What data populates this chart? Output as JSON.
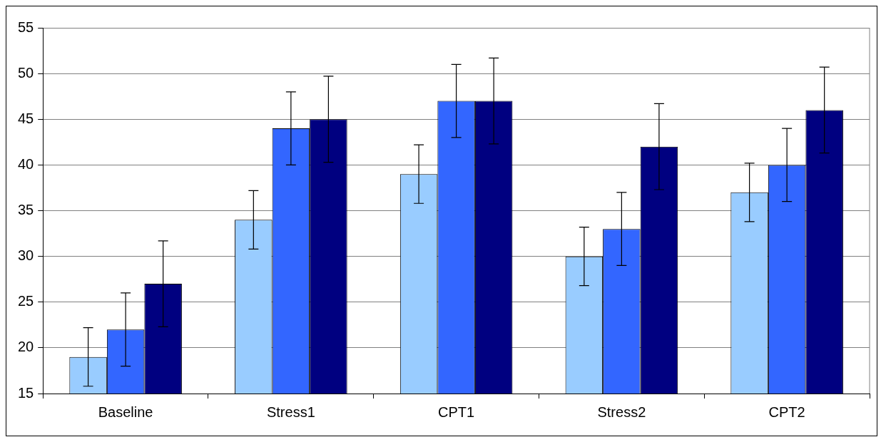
{
  "chart_data": {
    "type": "bar",
    "categories": [
      "Baseline",
      "Stress1",
      "CPT1",
      "Stress2",
      "CPT2"
    ],
    "series": [
      {
        "color": "#99ccff",
        "values": [
          19,
          34,
          39,
          30,
          37
        ],
        "errors": [
          3.2,
          3.2,
          3.2,
          3.2,
          3.2
        ]
      },
      {
        "color": "#3366ff",
        "values": [
          22,
          44,
          47,
          33,
          40
        ],
        "errors": [
          4,
          4,
          4,
          4,
          4
        ]
      },
      {
        "color": "#000080",
        "values": [
          27,
          45,
          47,
          42,
          46
        ],
        "errors": [
          4.7,
          4.7,
          4.7,
          4.7,
          4.7
        ]
      }
    ],
    "ylim": [
      15,
      55
    ],
    "yticks": [
      15,
      20,
      25,
      30,
      35,
      40,
      45,
      50,
      55
    ],
    "grid": "y",
    "legend": false
  }
}
